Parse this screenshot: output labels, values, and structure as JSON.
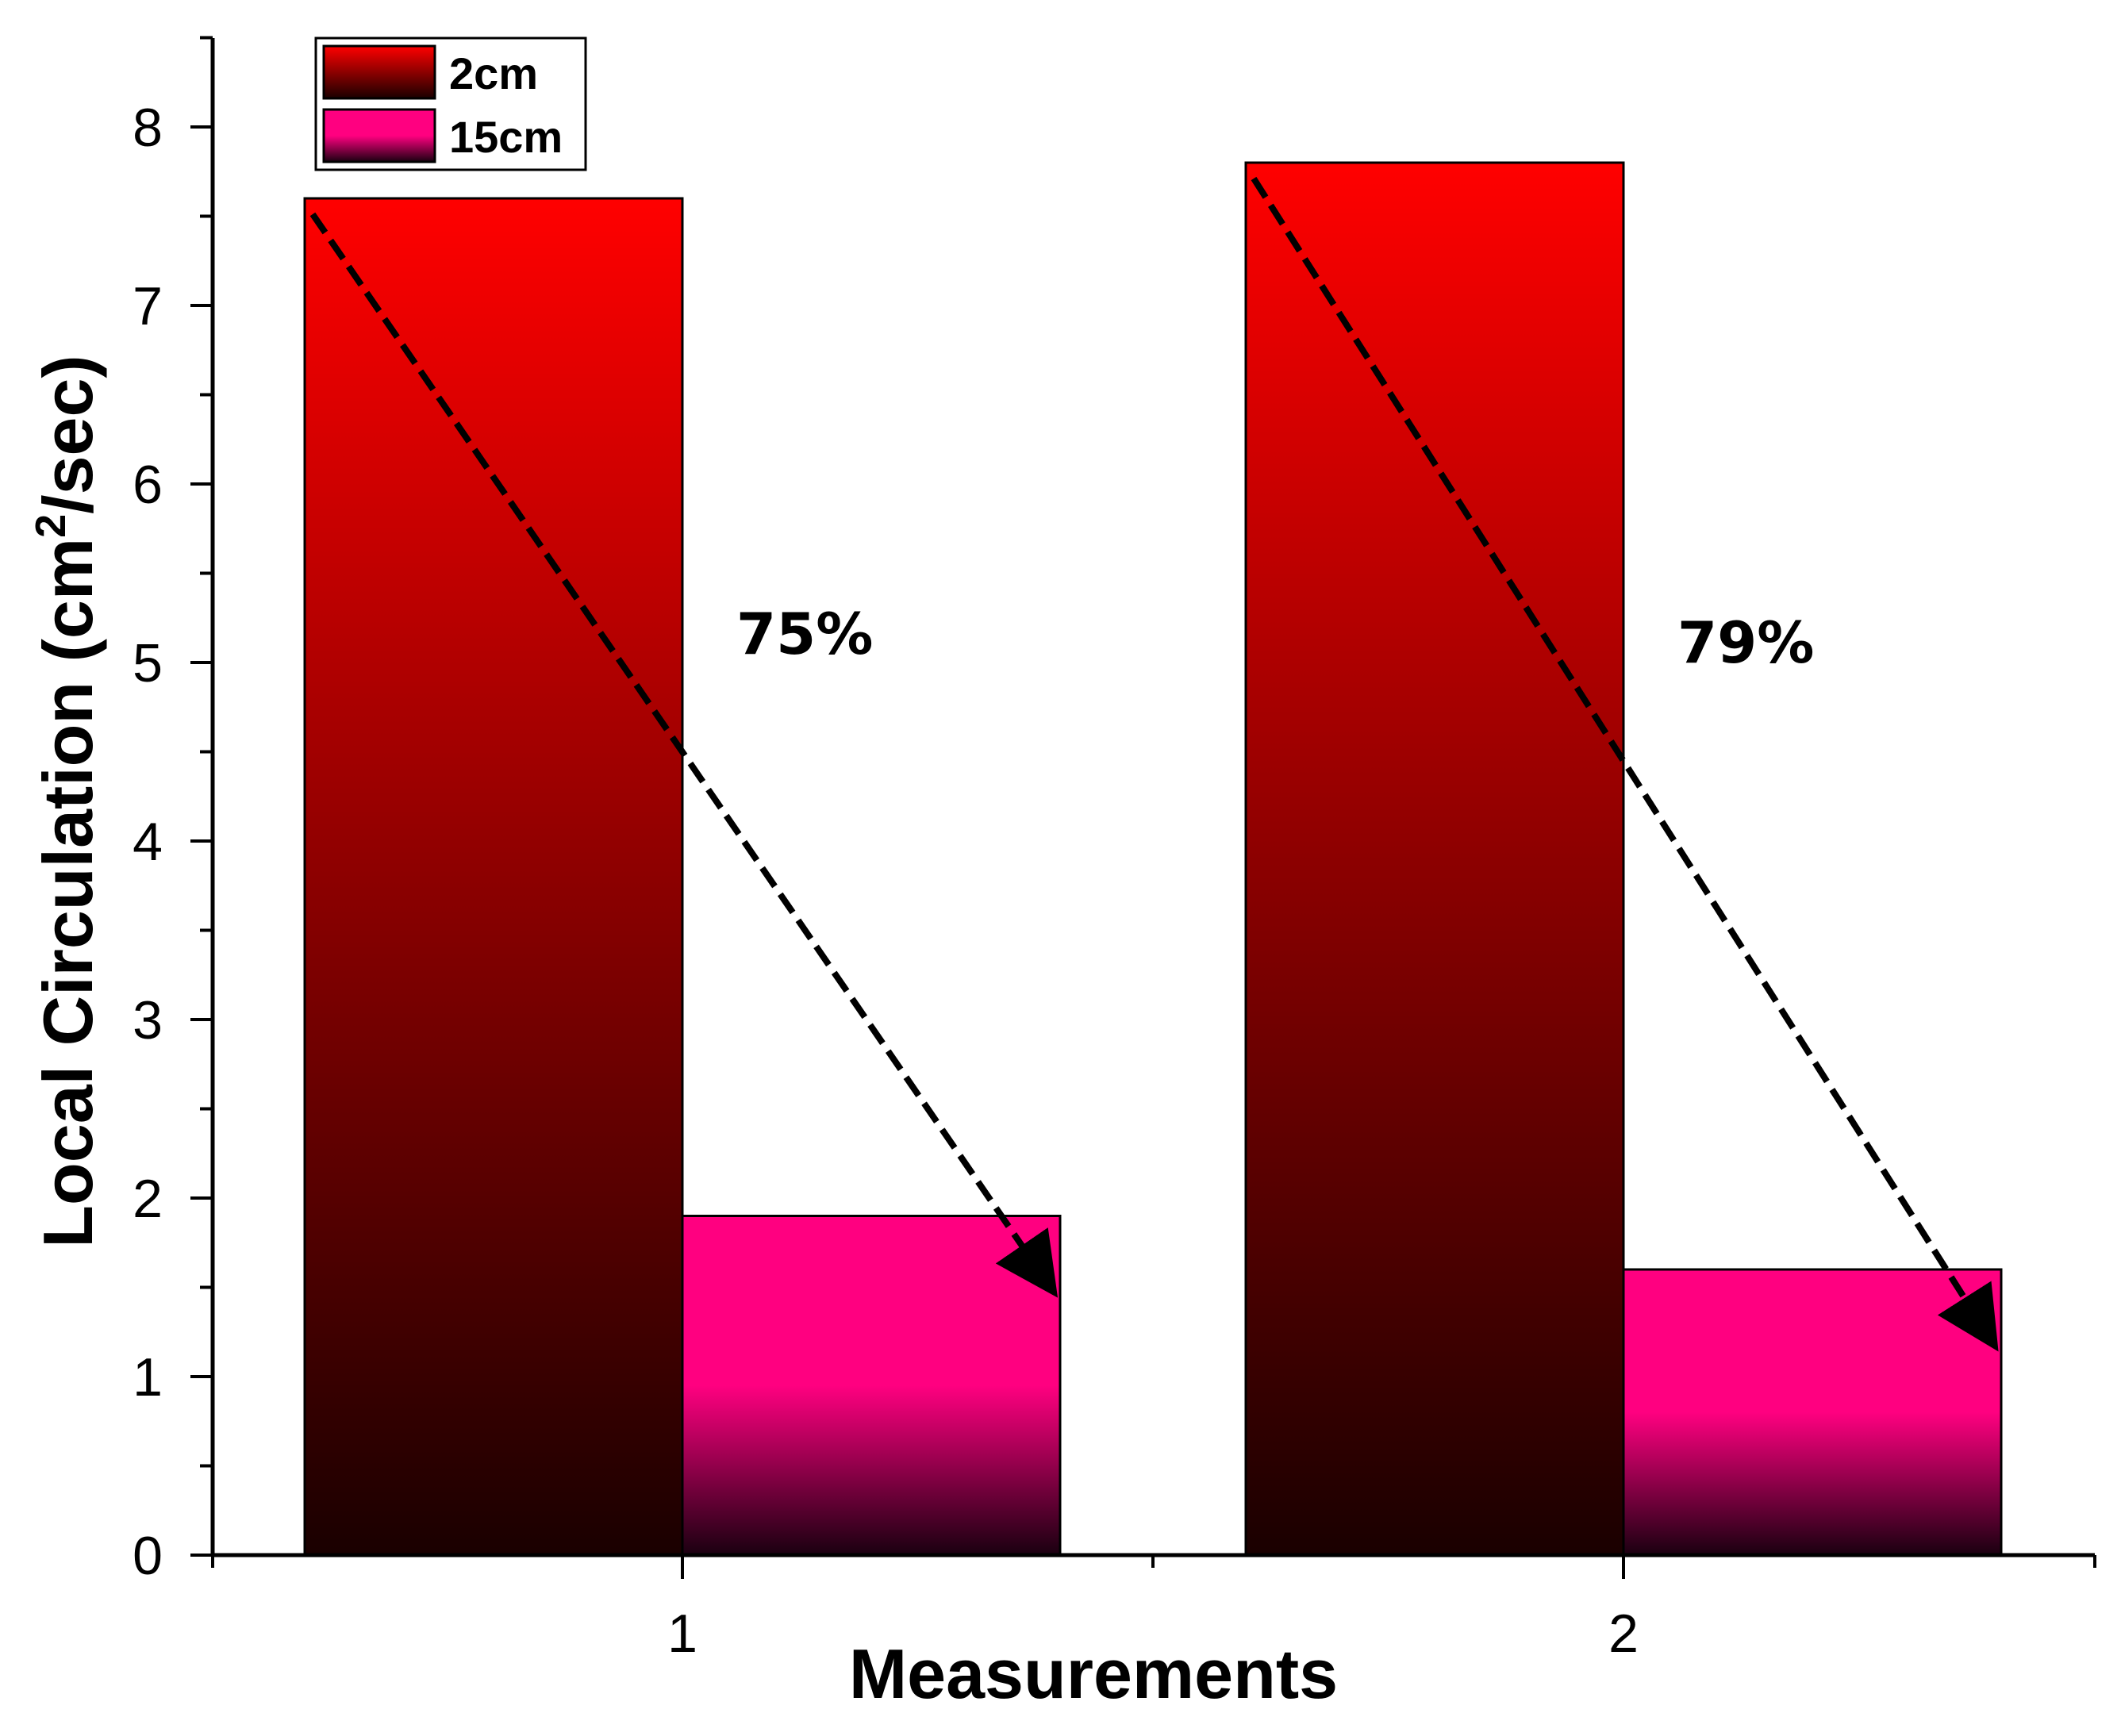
{
  "chart_data": {
    "type": "bar",
    "title": "",
    "xlabel": "Measurements",
    "ylabel_main": "Local Circulation (cm",
    "ylabel_sup": "2",
    "ylabel_end": "/sec)",
    "categories": [
      "1",
      "2"
    ],
    "series": [
      {
        "name": "2cm",
        "values": [
          7.6,
          7.8
        ],
        "color_top": "#ff0000",
        "color_bottom": "#1a0000"
      },
      {
        "name": "15cm",
        "values": [
          1.9,
          1.6
        ],
        "color_top": "#ff0080",
        "color_bottom": "#1a0010"
      }
    ],
    "ylim": [
      0,
      8.5
    ],
    "yticks": [
      0,
      1,
      2,
      3,
      4,
      5,
      6,
      7,
      8
    ],
    "grid": false,
    "legend": "top-left",
    "annotations": [
      {
        "text": "75%",
        "category": "1",
        "from_value": 7.6,
        "to_value": 1.9
      },
      {
        "text": "79%",
        "category": "2",
        "from_value": 7.8,
        "to_value": 1.6
      }
    ]
  }
}
